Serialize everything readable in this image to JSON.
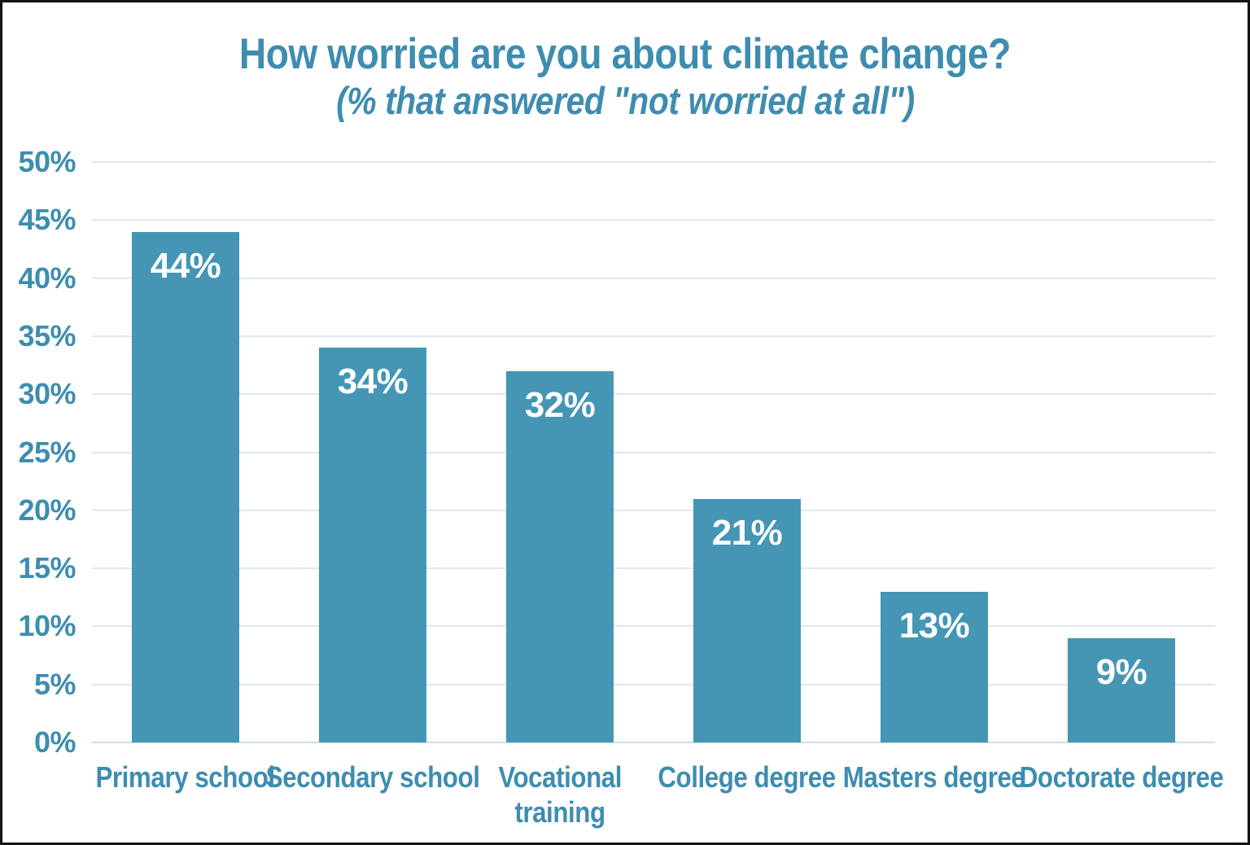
{
  "frame": {
    "background_color": "#ffffff",
    "border_color": "#141414"
  },
  "chart_data": {
    "type": "bar",
    "title": "How worried are you about climate change?",
    "subtitle": "(% that answered \"not worried at all\")",
    "categories": [
      "Primary school",
      "Secondary school",
      "Vocational training",
      "College degree",
      "Masters degree",
      "Doctorate degree"
    ],
    "category_label_lines": [
      [
        "Primary school"
      ],
      [
        "Secondary school"
      ],
      [
        "Vocational",
        "training"
      ],
      [
        "College degree"
      ],
      [
        "Masters degree"
      ],
      [
        "Doctorate degree"
      ]
    ],
    "values": [
      44,
      34,
      32,
      21,
      13,
      9
    ],
    "data_labels": [
      "44%",
      "34%",
      "32%",
      "21%",
      "13%",
      "9%"
    ],
    "xlabel": "",
    "ylabel": "",
    "ylim": [
      0,
      50
    ],
    "ytick_step": 5,
    "ytick_labels": [
      "0%",
      "5%",
      "10%",
      "15%",
      "20%",
      "25%",
      "30%",
      "35%",
      "40%",
      "45%",
      "50%"
    ],
    "grid": true,
    "legend": false,
    "colors": {
      "bar": "#4496b4",
      "text": "#3e8db0",
      "gridline": "#dce8f2",
      "baseline": "#c9deea",
      "data_label": "#ffffff"
    }
  }
}
